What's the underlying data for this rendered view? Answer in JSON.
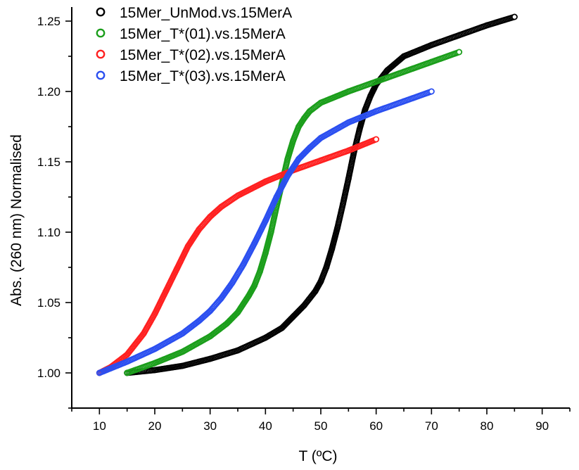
{
  "chart_data": {
    "type": "scatter",
    "title": "",
    "xlabel": "T (ºC)",
    "ylabel": "Abs. (260 nm) Normalised",
    "xlim": [
      5,
      95
    ],
    "ylim": [
      0.975,
      1.26
    ],
    "x_ticks": [
      10,
      20,
      30,
      40,
      50,
      60,
      70,
      80,
      90
    ],
    "x_tick_labels": [
      "10",
      "20",
      "30",
      "40",
      "50",
      "60",
      "70",
      "80",
      "90"
    ],
    "y_ticks": [
      1.0,
      1.05,
      1.1,
      1.15,
      1.2,
      1.25
    ],
    "y_tick_labels": [
      "1.00",
      "1.05",
      "1.10",
      "1.15",
      "1.20",
      "1.25"
    ],
    "grid": false,
    "legend_position": "top-left",
    "marker": "open-circle",
    "series": [
      {
        "name": "15Mer_UnMod.vs.15MerA",
        "color": "#000000",
        "x": [
          15,
          20,
          25,
          30,
          35,
          40,
          43,
          45,
          47,
          49,
          50,
          51,
          52,
          53,
          54,
          55,
          56,
          57,
          58,
          59,
          60,
          62,
          65,
          70,
          75,
          80,
          85
        ],
        "y": [
          1.0,
          1.002,
          1.005,
          1.01,
          1.016,
          1.025,
          1.032,
          1.04,
          1.048,
          1.058,
          1.065,
          1.075,
          1.088,
          1.103,
          1.12,
          1.138,
          1.157,
          1.173,
          1.187,
          1.197,
          1.205,
          1.215,
          1.225,
          1.233,
          1.24,
          1.247,
          1.253
        ]
      },
      {
        "name": "15Mer_T*(01).vs.15MerA",
        "color": "#1b9e1b",
        "x": [
          15,
          20,
          25,
          30,
          33,
          35,
          37,
          38,
          39,
          40,
          41,
          42,
          43,
          44,
          45,
          46,
          47,
          48,
          50,
          55,
          60,
          65,
          70,
          75
        ],
        "y": [
          1.0,
          1.007,
          1.015,
          1.026,
          1.035,
          1.043,
          1.055,
          1.062,
          1.072,
          1.085,
          1.1,
          1.118,
          1.135,
          1.152,
          1.165,
          1.175,
          1.181,
          1.186,
          1.192,
          1.2,
          1.207,
          1.214,
          1.221,
          1.228
        ]
      },
      {
        "name": "15Mer_T*(02).vs.15MerA",
        "color": "#ff2020",
        "x": [
          10,
          12,
          15,
          18,
          20,
          22,
          24,
          26,
          28,
          30,
          32,
          35,
          40,
          45,
          50,
          55,
          60
        ],
        "y": [
          1.0,
          1.004,
          1.013,
          1.028,
          1.042,
          1.058,
          1.074,
          1.09,
          1.102,
          1.111,
          1.118,
          1.126,
          1.136,
          1.144,
          1.151,
          1.158,
          1.166
        ]
      },
      {
        "name": "15Mer_T*(03).vs.15MerA",
        "color": "#2b4ff0",
        "x": [
          10,
          15,
          20,
          25,
          28,
          30,
          32,
          34,
          36,
          38,
          40,
          42,
          44,
          46,
          48,
          50,
          55,
          60,
          65,
          70
        ],
        "y": [
          1.0,
          1.008,
          1.017,
          1.028,
          1.037,
          1.044,
          1.053,
          1.064,
          1.077,
          1.092,
          1.108,
          1.125,
          1.14,
          1.152,
          1.16,
          1.167,
          1.178,
          1.186,
          1.193,
          1.2
        ]
      }
    ]
  }
}
